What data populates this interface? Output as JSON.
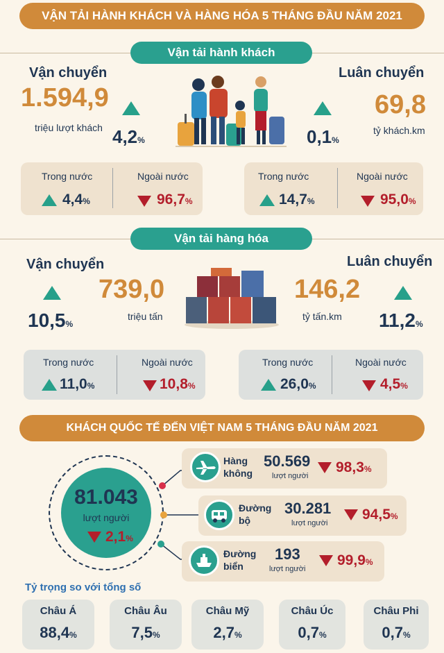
{
  "title": "VẬN TẢI HÀNH KHÁCH VÀ HÀNG HÓA  5 THÁNG ĐẦU NĂM 2021",
  "passenger": {
    "header": "Vận tải hành khách",
    "transport_label": "Vận chuyển",
    "transport_value": "1.594,9",
    "transport_unit": "triệu lượt khách",
    "transport_change": "4,2",
    "rotation_label": "Luân chuyển",
    "rotation_value": "69,8",
    "rotation_unit": "tỷ khách.km",
    "rotation_change": "0,1",
    "left_box": {
      "domestic_label": "Trong nước",
      "domestic_value": "4,4",
      "foreign_label": "Ngoài nước",
      "foreign_value": "96,7"
    },
    "right_box": {
      "domestic_label": "Trong nước",
      "domestic_value": "14,7",
      "foreign_label": "Ngoài nước",
      "foreign_value": "95,0"
    }
  },
  "cargo": {
    "header": "Vận tải hàng hóa",
    "transport_label": "Vận chuyển",
    "transport_value": "739,0",
    "transport_unit": "triệu tấn",
    "transport_change": "10,5",
    "rotation_label": "Luân chuyển",
    "rotation_value": "146,2",
    "rotation_unit": "tỷ tấn.km",
    "rotation_change": "11,2",
    "left_box": {
      "domestic_label": "Trong nước",
      "domestic_value": "11,0",
      "foreign_label": "Ngoài nước",
      "foreign_value": "10,8"
    },
    "right_box": {
      "domestic_label": "Trong nước",
      "domestic_value": "26,0",
      "foreign_label": "Ngoài nước",
      "foreign_value": "4,5"
    }
  },
  "visitors": {
    "title": "KHÁCH QUỐC TẾ ĐẾN VIỆT NAM 5 THÁNG ĐẦU NĂM 2021",
    "total_value": "81.043",
    "total_unit": "lượt người",
    "total_change": "2,1",
    "modes": [
      {
        "name_line1": "Hàng",
        "name_line2": "không",
        "value": "50.569",
        "unit": "lượt người",
        "change": "98,3",
        "icon": "airplane-icon"
      },
      {
        "name_line1": "Đường",
        "name_line2": "bộ",
        "value": "30.281",
        "unit": "lượt người",
        "change": "94,5",
        "icon": "car-icon"
      },
      {
        "name_line1": "Đường",
        "name_line2": "biển",
        "value": "193",
        "unit": "lượt người",
        "change": "99,9",
        "icon": "ship-icon"
      }
    ],
    "share_label": "Tỷ trọng so với tổng số",
    "regions": [
      {
        "name": "Châu Á",
        "value": "88,4"
      },
      {
        "name": "Châu Âu",
        "value": "7,5"
      },
      {
        "name": "Châu Mỹ",
        "value": "2,7"
      },
      {
        "name": "Châu Úc",
        "value": "0,7"
      },
      {
        "name": "Châu Phi",
        "value": "0,7"
      }
    ]
  },
  "percent_sign": "%",
  "colors": {
    "banner": "#d08a3a",
    "pill": "#2aa08f",
    "up": "#27a08a",
    "down": "#b31e2b",
    "navy": "#1f3552"
  }
}
